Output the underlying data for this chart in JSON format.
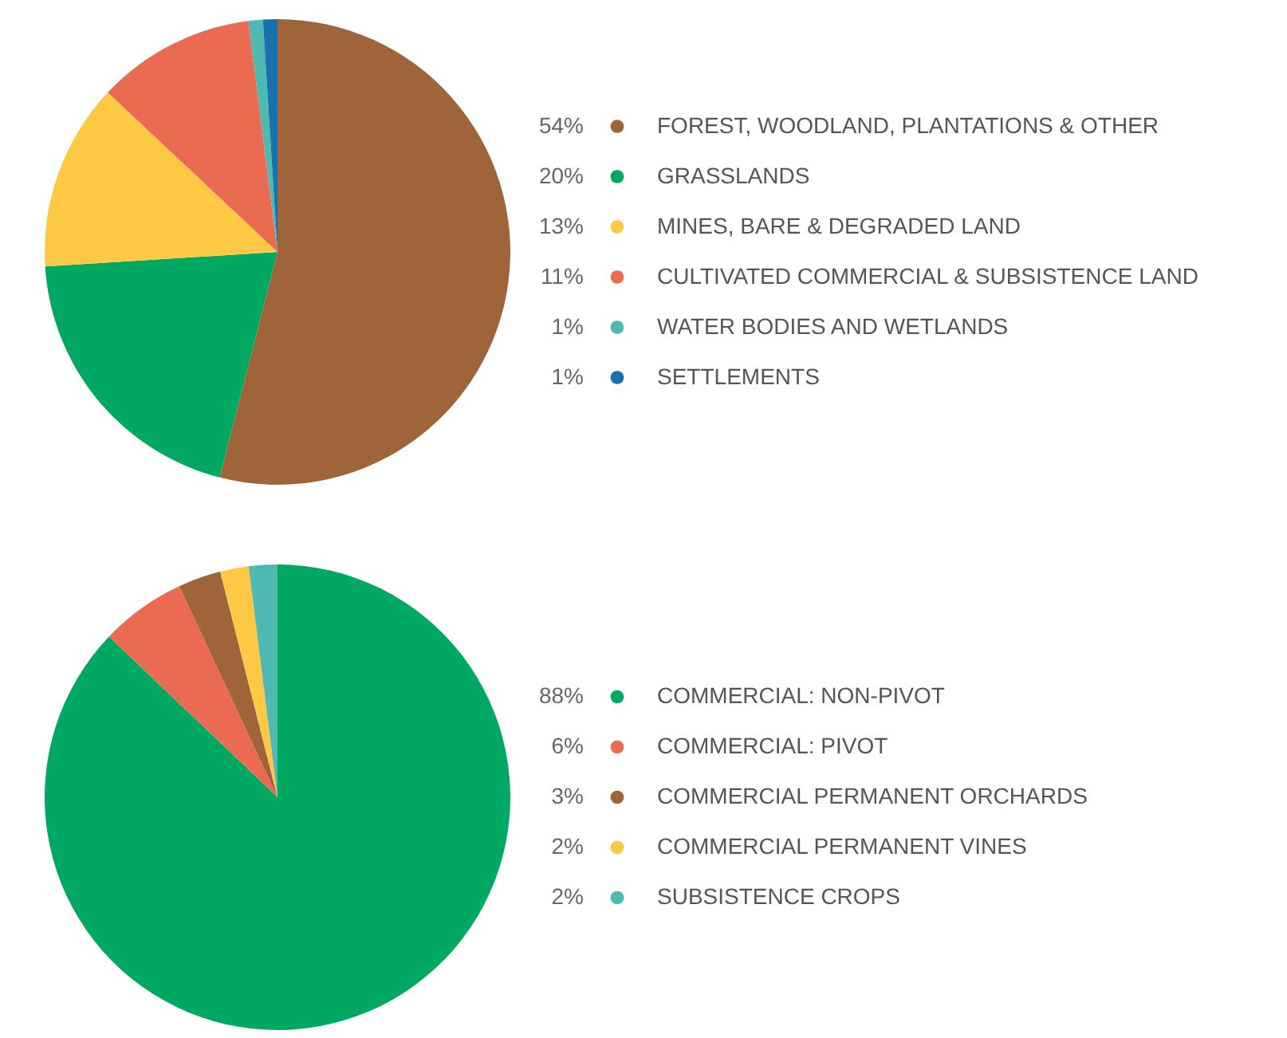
{
  "chart_data": [
    {
      "type": "pie",
      "categories": [
        "FOREST, WOODLAND, PLANTATIONS & OTHER",
        "GRASSLANDS",
        "MINES, BARE & DEGRADED LAND",
        "CULTIVATED COMMERCIAL & SUBSISTENCE LAND",
        "WATER BODIES AND WETLANDS",
        "SETTLEMENTS"
      ],
      "values": [
        54,
        20,
        13,
        11,
        1,
        1
      ],
      "value_labels": [
        "54%",
        "20%",
        "13%",
        "11%",
        "1%",
        "1%"
      ],
      "colors": [
        "#a0643a",
        "#00a862",
        "#fdc843",
        "#eb6a52",
        "#4fb8b0",
        "#1a6fad"
      ],
      "legend": "right"
    },
    {
      "type": "pie",
      "categories": [
        "COMMERCIAL: NON-PIVOT",
        "COMMERCIAL: PIVOT",
        "COMMERCIAL PERMANENT ORCHARDS",
        "COMMERCIAL PERMANENT VINES",
        "SUBSISTENCE CROPS"
      ],
      "values": [
        88,
        6,
        3,
        2,
        2
      ],
      "value_labels": [
        "88%",
        "6%",
        "3%",
        "2%",
        "2%"
      ],
      "colors": [
        "#00a862",
        "#eb6a52",
        "#a0643a",
        "#fdc843",
        "#4fb8b0"
      ],
      "legend": "right"
    }
  ]
}
